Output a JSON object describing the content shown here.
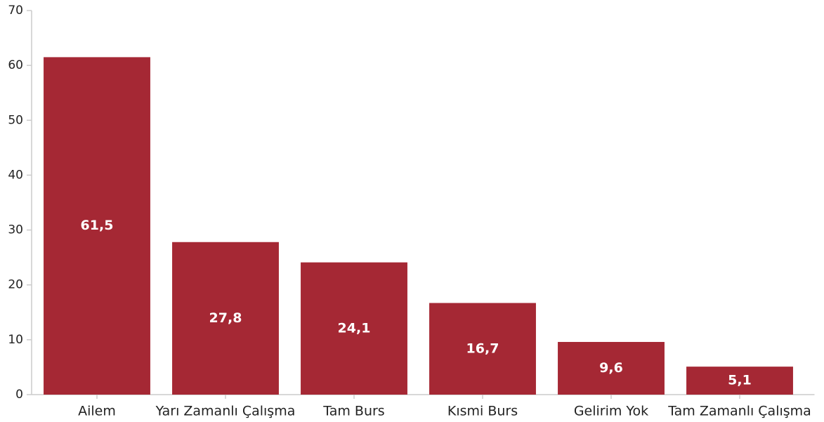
{
  "chart_data": {
    "type": "bar",
    "categories": [
      "Ailem",
      "Yarı Zamanlı Çalışma",
      "Tam Burs",
      "Kısmi Burs",
      "Gelirim Yok",
      "Tam Zamanlı Çalışma"
    ],
    "values": [
      61.5,
      27.8,
      24.1,
      16.7,
      9.6,
      5.1
    ],
    "value_labels": [
      "61,5",
      "27,8",
      "24,1",
      "16,7",
      "9,6",
      "5,1"
    ],
    "color": "#a52834",
    "ylim": [
      0,
      70
    ],
    "yticks": [
      0,
      10,
      20,
      30,
      40,
      50,
      60,
      70
    ],
    "grid": false
  }
}
